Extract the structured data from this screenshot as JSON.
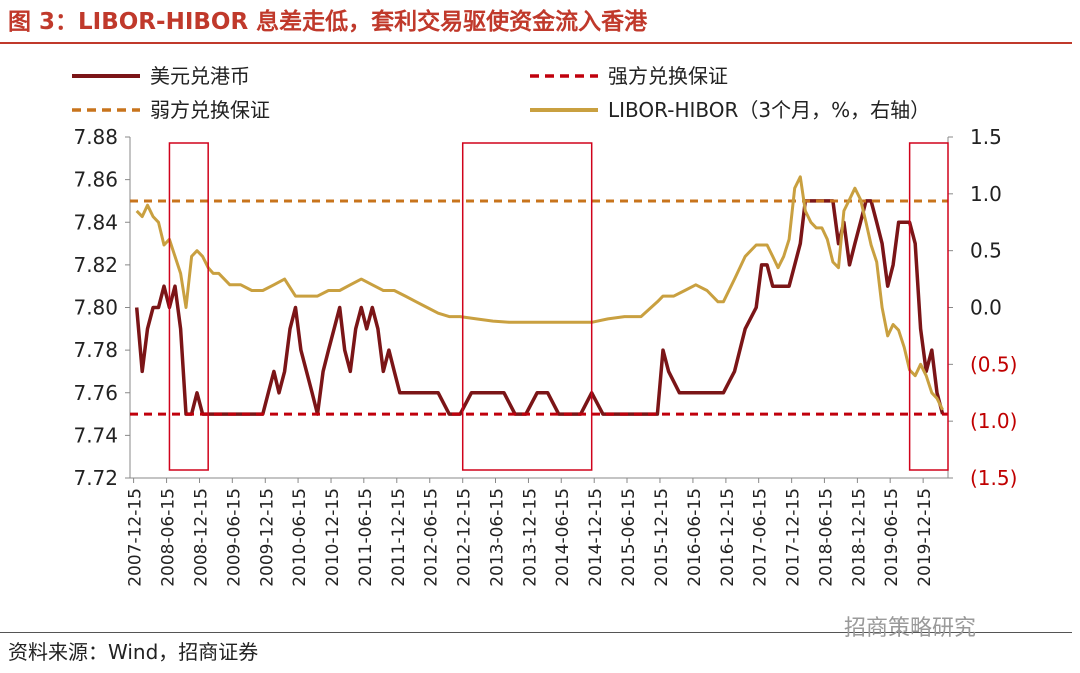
{
  "header": {
    "title": "图 3：LIBOR-HIBOR 息差走低，套利交易驱使资金流入香港"
  },
  "footer": {
    "source": "资料来源：Wind，招商证券",
    "watermark": "招商策略研究"
  },
  "chart_data": {
    "type": "line",
    "title": "",
    "xlabel": "",
    "ylabel": "",
    "x_ticks": [
      "2007-12-15",
      "2008-06-15",
      "2008-12-15",
      "2009-06-15",
      "2009-12-15",
      "2010-06-15",
      "2010-12-15",
      "2011-06-15",
      "2011-12-15",
      "2012-06-15",
      "2012-12-15",
      "2013-06-15",
      "2013-12-15",
      "2014-06-15",
      "2014-12-15",
      "2015-06-15",
      "2015-12-15",
      "2016-06-15",
      "2016-12-15",
      "2017-06-15",
      "2017-12-15",
      "2018-06-15",
      "2018-12-15",
      "2019-06-15",
      "2019-12-15"
    ],
    "y_left": {
      "range": [
        7.72,
        7.88
      ],
      "ticks": [
        "7.72",
        "7.74",
        "7.76",
        "7.78",
        "7.80",
        "7.82",
        "7.84",
        "7.86",
        "7.88"
      ]
    },
    "y_right": {
      "range": [
        -1.5,
        1.5
      ],
      "ticks": [
        "(1.5)",
        "(1.0)",
        "(0.5)",
        "0.0",
        "0.5",
        "1.0",
        "1.5"
      ],
      "negative_color": "#C00000"
    },
    "legend": {
      "placement": "top"
    },
    "series": [
      {
        "name": "美元兑港币",
        "axis": "left",
        "color": "#7B1517",
        "style": "solid",
        "points": [
          [
            "2008-01-01",
            7.8
          ],
          [
            "2008-02-01",
            7.77
          ],
          [
            "2008-03-01",
            7.79
          ],
          [
            "2008-04-01",
            7.8
          ],
          [
            "2008-05-01",
            7.8
          ],
          [
            "2008-06-01",
            7.81
          ],
          [
            "2008-07-01",
            7.8
          ],
          [
            "2008-08-01",
            7.81
          ],
          [
            "2008-09-01",
            7.79
          ],
          [
            "2008-10-01",
            7.75
          ],
          [
            "2008-11-01",
            7.75
          ],
          [
            "2008-12-01",
            7.76
          ],
          [
            "2009-01-01",
            7.75
          ],
          [
            "2009-02-01",
            7.75
          ],
          [
            "2009-04-01",
            7.75
          ],
          [
            "2009-06-01",
            7.75
          ],
          [
            "2009-09-01",
            7.75
          ],
          [
            "2009-12-01",
            7.75
          ],
          [
            "2010-01-01",
            7.76
          ],
          [
            "2010-02-01",
            7.77
          ],
          [
            "2010-03-01",
            7.76
          ],
          [
            "2010-04-01",
            7.77
          ],
          [
            "2010-05-01",
            7.79
          ],
          [
            "2010-06-01",
            7.8
          ],
          [
            "2010-07-01",
            7.78
          ],
          [
            "2010-08-01",
            7.77
          ],
          [
            "2010-09-01",
            7.76
          ],
          [
            "2010-10-01",
            7.75
          ],
          [
            "2010-11-01",
            7.77
          ],
          [
            "2010-12-01",
            7.78
          ],
          [
            "2011-01-01",
            7.79
          ],
          [
            "2011-02-01",
            7.8
          ],
          [
            "2011-03-01",
            7.78
          ],
          [
            "2011-04-01",
            7.77
          ],
          [
            "2011-05-01",
            7.79
          ],
          [
            "2011-06-01",
            7.8
          ],
          [
            "2011-07-01",
            7.79
          ],
          [
            "2011-08-01",
            7.8
          ],
          [
            "2011-09-01",
            7.79
          ],
          [
            "2011-10-01",
            7.77
          ],
          [
            "2011-11-01",
            7.78
          ],
          [
            "2011-12-01",
            7.77
          ],
          [
            "2012-01-01",
            7.76
          ],
          [
            "2012-02-01",
            7.76
          ],
          [
            "2012-03-01",
            7.76
          ],
          [
            "2012-04-01",
            7.76
          ],
          [
            "2012-06-01",
            7.76
          ],
          [
            "2012-08-01",
            7.76
          ],
          [
            "2012-10-01",
            7.75
          ],
          [
            "2012-12-01",
            7.75
          ],
          [
            "2013-02-01",
            7.76
          ],
          [
            "2013-04-01",
            7.76
          ],
          [
            "2013-06-01",
            7.76
          ],
          [
            "2013-08-01",
            7.76
          ],
          [
            "2013-10-01",
            7.75
          ],
          [
            "2013-12-01",
            7.75
          ],
          [
            "2014-02-01",
            7.76
          ],
          [
            "2014-04-01",
            7.76
          ],
          [
            "2014-06-01",
            7.75
          ],
          [
            "2014-08-01",
            7.75
          ],
          [
            "2014-10-01",
            7.75
          ],
          [
            "2014-12-01",
            7.76
          ],
          [
            "2015-02-01",
            7.75
          ],
          [
            "2015-04-01",
            7.75
          ],
          [
            "2015-06-01",
            7.75
          ],
          [
            "2015-08-01",
            7.75
          ],
          [
            "2015-10-01",
            7.75
          ],
          [
            "2015-12-01",
            7.75
          ],
          [
            "2016-01-01",
            7.78
          ],
          [
            "2016-02-01",
            7.77
          ],
          [
            "2016-04-01",
            7.76
          ],
          [
            "2016-06-01",
            7.76
          ],
          [
            "2016-08-01",
            7.76
          ],
          [
            "2016-10-01",
            7.76
          ],
          [
            "2016-12-01",
            7.76
          ],
          [
            "2017-02-01",
            7.77
          ],
          [
            "2017-04-01",
            7.79
          ],
          [
            "2017-06-01",
            7.8
          ],
          [
            "2017-07-01",
            7.82
          ],
          [
            "2017-08-01",
            7.82
          ],
          [
            "2017-09-01",
            7.81
          ],
          [
            "2017-10-01",
            7.81
          ],
          [
            "2017-11-01",
            7.81
          ],
          [
            "2017-12-01",
            7.81
          ],
          [
            "2018-01-01",
            7.82
          ],
          [
            "2018-02-01",
            7.83
          ],
          [
            "2018-03-01",
            7.85
          ],
          [
            "2018-04-01",
            7.85
          ],
          [
            "2018-05-01",
            7.85
          ],
          [
            "2018-06-01",
            7.85
          ],
          [
            "2018-07-01",
            7.85
          ],
          [
            "2018-08-01",
            7.85
          ],
          [
            "2018-09-01",
            7.83
          ],
          [
            "2018-10-01",
            7.84
          ],
          [
            "2018-11-01",
            7.82
          ],
          [
            "2018-12-01",
            7.83
          ],
          [
            "2019-01-01",
            7.84
          ],
          [
            "2019-02-01",
            7.85
          ],
          [
            "2019-03-01",
            7.85
          ],
          [
            "2019-04-01",
            7.84
          ],
          [
            "2019-05-01",
            7.83
          ],
          [
            "2019-06-01",
            7.81
          ],
          [
            "2019-07-01",
            7.82
          ],
          [
            "2019-08-01",
            7.84
          ],
          [
            "2019-09-01",
            7.84
          ],
          [
            "2019-10-01",
            7.84
          ],
          [
            "2019-11-01",
            7.83
          ],
          [
            "2019-12-01",
            7.79
          ],
          [
            "2020-01-01",
            7.77
          ],
          [
            "2020-02-01",
            7.78
          ],
          [
            "2020-03-01",
            7.76
          ],
          [
            "2020-04-01",
            7.75
          ]
        ]
      },
      {
        "name": "强方兑换保证",
        "axis": "left",
        "color": "#C0000C",
        "style": "dashed",
        "value": 7.75
      },
      {
        "name": "弱方兑换保证",
        "axis": "left",
        "color": "#C8741C",
        "style": "dashed",
        "value": 7.85
      },
      {
        "name": "LIBOR-HIBOR（3个月，%，右轴）",
        "axis": "right",
        "color": "#C9A040",
        "style": "solid",
        "points": [
          [
            "2008-01-01",
            0.85
          ],
          [
            "2008-02-01",
            0.8
          ],
          [
            "2008-03-01",
            0.9
          ],
          [
            "2008-04-01",
            0.8
          ],
          [
            "2008-05-01",
            0.75
          ],
          [
            "2008-06-01",
            0.55
          ],
          [
            "2008-07-01",
            0.6
          ],
          [
            "2008-08-01",
            0.45
          ],
          [
            "2008-09-01",
            0.3
          ],
          [
            "2008-10-01",
            0.0
          ],
          [
            "2008-11-01",
            0.45
          ],
          [
            "2008-12-01",
            0.5
          ],
          [
            "2009-01-01",
            0.45
          ],
          [
            "2009-02-01",
            0.35
          ],
          [
            "2009-03-01",
            0.3
          ],
          [
            "2009-04-01",
            0.3
          ],
          [
            "2009-06-01",
            0.2
          ],
          [
            "2009-08-01",
            0.2
          ],
          [
            "2009-10-01",
            0.15
          ],
          [
            "2009-12-01",
            0.15
          ],
          [
            "2010-02-01",
            0.2
          ],
          [
            "2010-04-01",
            0.25
          ],
          [
            "2010-06-01",
            0.1
          ],
          [
            "2010-08-01",
            0.1
          ],
          [
            "2010-10-01",
            0.1
          ],
          [
            "2010-12-01",
            0.15
          ],
          [
            "2011-02-01",
            0.15
          ],
          [
            "2011-04-01",
            0.2
          ],
          [
            "2011-06-01",
            0.25
          ],
          [
            "2011-08-01",
            0.2
          ],
          [
            "2011-10-01",
            0.15
          ],
          [
            "2011-12-01",
            0.15
          ],
          [
            "2012-02-01",
            0.1
          ],
          [
            "2012-04-01",
            0.05
          ],
          [
            "2012-06-01",
            0.0
          ],
          [
            "2012-08-01",
            -0.05
          ],
          [
            "2012-10-01",
            -0.08
          ],
          [
            "2012-12-01",
            -0.08
          ],
          [
            "2013-03-01",
            -0.1
          ],
          [
            "2013-06-01",
            -0.12
          ],
          [
            "2013-09-01",
            -0.13
          ],
          [
            "2013-12-01",
            -0.13
          ],
          [
            "2014-03-01",
            -0.13
          ],
          [
            "2014-06-01",
            -0.13
          ],
          [
            "2014-09-01",
            -0.13
          ],
          [
            "2014-12-01",
            -0.13
          ],
          [
            "2015-03-01",
            -0.1
          ],
          [
            "2015-06-01",
            -0.08
          ],
          [
            "2015-09-01",
            -0.08
          ],
          [
            "2015-12-01",
            0.05
          ],
          [
            "2016-01-01",
            0.1
          ],
          [
            "2016-03-01",
            0.1
          ],
          [
            "2016-05-01",
            0.15
          ],
          [
            "2016-07-01",
            0.2
          ],
          [
            "2016-09-01",
            0.15
          ],
          [
            "2016-11-01",
            0.05
          ],
          [
            "2016-12-01",
            0.05
          ],
          [
            "2017-02-01",
            0.25
          ],
          [
            "2017-04-01",
            0.45
          ],
          [
            "2017-06-01",
            0.55
          ],
          [
            "2017-08-01",
            0.55
          ],
          [
            "2017-09-01",
            0.45
          ],
          [
            "2017-10-01",
            0.35
          ],
          [
            "2017-11-01",
            0.45
          ],
          [
            "2017-12-01",
            0.6
          ],
          [
            "2018-01-01",
            1.05
          ],
          [
            "2018-02-01",
            1.15
          ],
          [
            "2018-03-01",
            0.85
          ],
          [
            "2018-04-01",
            0.75
          ],
          [
            "2018-05-01",
            0.7
          ],
          [
            "2018-06-01",
            0.7
          ],
          [
            "2018-07-01",
            0.6
          ],
          [
            "2018-08-01",
            0.4
          ],
          [
            "2018-09-01",
            0.35
          ],
          [
            "2018-10-01",
            0.85
          ],
          [
            "2018-11-01",
            0.95
          ],
          [
            "2018-12-01",
            1.05
          ],
          [
            "2019-01-01",
            0.95
          ],
          [
            "2019-02-01",
            0.75
          ],
          [
            "2019-03-01",
            0.55
          ],
          [
            "2019-04-01",
            0.4
          ],
          [
            "2019-05-01",
            0.0
          ],
          [
            "2019-06-01",
            -0.25
          ],
          [
            "2019-07-01",
            -0.15
          ],
          [
            "2019-08-01",
            -0.2
          ],
          [
            "2019-09-01",
            -0.35
          ],
          [
            "2019-10-01",
            -0.55
          ],
          [
            "2019-11-01",
            -0.6
          ],
          [
            "2019-12-01",
            -0.5
          ],
          [
            "2020-01-01",
            -0.6
          ],
          [
            "2020-02-01",
            -0.75
          ],
          [
            "2020-03-01",
            -0.8
          ],
          [
            "2020-04-01",
            -0.9
          ]
        ]
      }
    ],
    "highlight_regions": [
      [
        "2008-07-01",
        "2009-02-01"
      ],
      [
        "2012-12-15",
        "2014-12-01"
      ],
      [
        "2019-10-01",
        "2020-05-01"
      ]
    ]
  }
}
